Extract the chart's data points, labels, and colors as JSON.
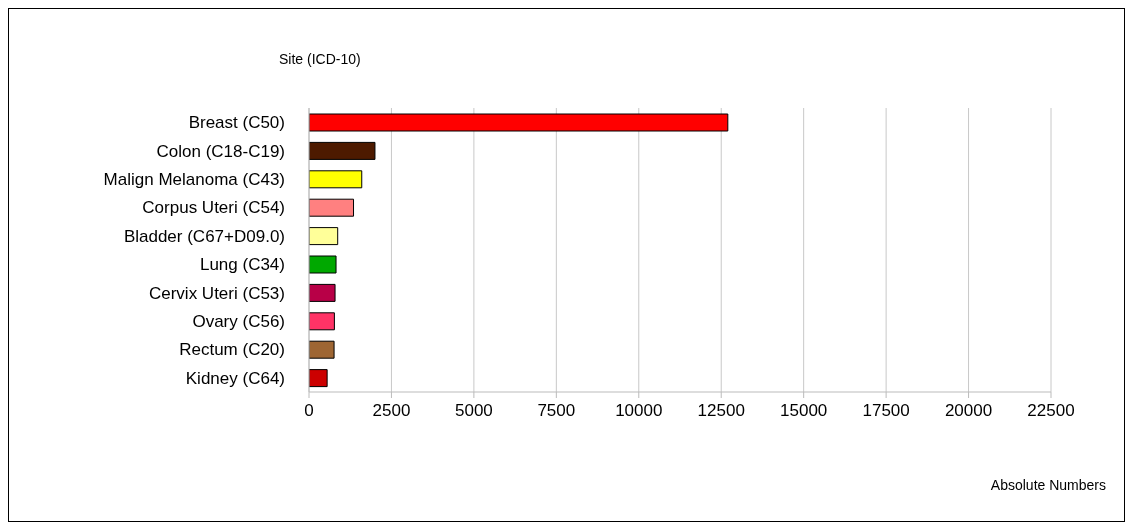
{
  "chart_data": {
    "type": "bar",
    "orientation": "horizontal",
    "ylabel": "Site (ICD-10)",
    "xlabel": "Absolute Numbers",
    "categories": [
      "Breast (C50)",
      "Colon (C18-C19)",
      "Malign Melanoma (C43)",
      "Corpus Uteri (C54)",
      "Bladder (C67+D09.0)",
      "Lung (C34)",
      "Cervix Uteri (C53)",
      "Ovary (C56)",
      "Rectum (C20)",
      "Kidney (C64)"
    ],
    "values": [
      12700,
      2000,
      1600,
      1350,
      870,
      820,
      790,
      770,
      760,
      550
    ],
    "colors": [
      "#ff0000",
      "#4d1a00",
      "#ffff00",
      "#ff8080",
      "#ffff99",
      "#00a800",
      "#b80047",
      "#ff3366",
      "#9e6633",
      "#cc0000"
    ],
    "xlim": [
      0,
      22500
    ],
    "xticks": [
      0,
      2500,
      5000,
      7500,
      10000,
      12500,
      15000,
      17500,
      20000,
      22500
    ],
    "grid": "x",
    "legend": false
  }
}
